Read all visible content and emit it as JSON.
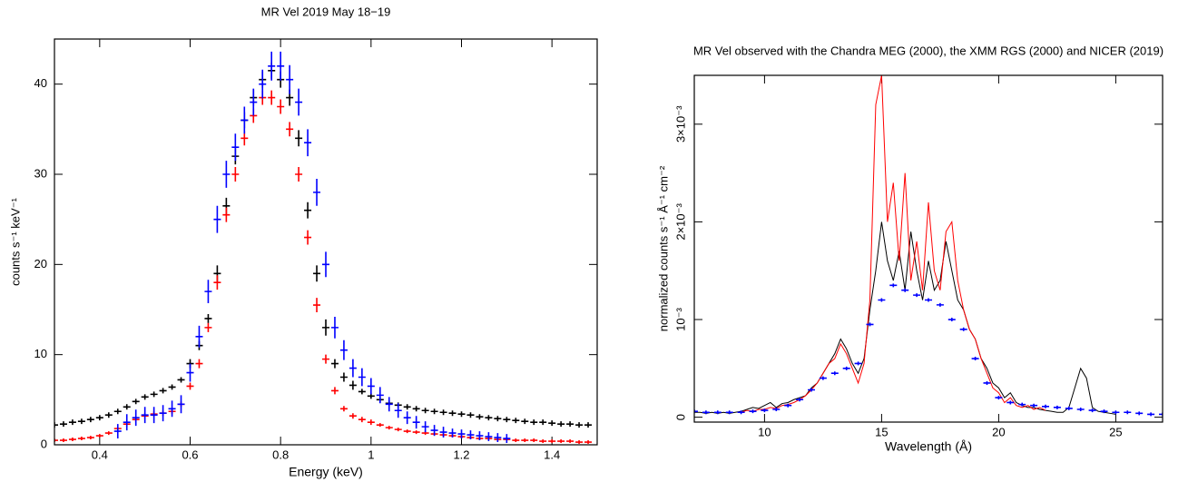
{
  "chart_data": [
    {
      "type": "scatter",
      "title": "MR Vel 2019 May 18−19",
      "x_label": "Energy (keV)",
      "y_label": "counts s⁻¹ keV⁻¹",
      "xlim": [
        0.3,
        1.5
      ],
      "ylim": [
        0,
        45
      ],
      "xticks": [
        0.4,
        0.6,
        0.8,
        1,
        1.2,
        1.4
      ],
      "yticks": [
        0,
        10,
        20,
        30,
        40
      ],
      "series": [
        {
          "color": "#000000",
          "x": [
            0.3,
            0.32,
            0.34,
            0.36,
            0.38,
            0.4,
            0.42,
            0.44,
            0.46,
            0.48,
            0.5,
            0.52,
            0.54,
            0.56,
            0.58,
            0.6,
            0.62,
            0.64,
            0.66,
            0.68,
            0.7,
            0.72,
            0.74,
            0.76,
            0.78,
            0.8,
            0.82,
            0.84,
            0.86,
            0.88,
            0.9,
            0.92,
            0.94,
            0.96,
            0.98,
            1.0,
            1.02,
            1.04,
            1.06,
            1.08,
            1.1,
            1.12,
            1.14,
            1.16,
            1.18,
            1.2,
            1.22,
            1.24,
            1.26,
            1.28,
            1.3,
            1.32,
            1.34,
            1.36,
            1.38,
            1.4,
            1.42,
            1.44,
            1.46,
            1.48
          ],
          "values": [
            2.2,
            2.3,
            2.5,
            2.6,
            2.8,
            3.0,
            3.3,
            3.7,
            4.2,
            4.8,
            5.3,
            5.6,
            6.0,
            6.4,
            7.2,
            9.0,
            11.0,
            14.0,
            19.0,
            26.5,
            32.0,
            36.0,
            38.5,
            40.5,
            41.5,
            40.5,
            38.5,
            34.0,
            26.0,
            19.0,
            13.0,
            9.0,
            7.5,
            6.6,
            5.9,
            5.4,
            5.0,
            4.6,
            4.4,
            4.2,
            4.0,
            3.8,
            3.7,
            3.6,
            3.5,
            3.4,
            3.3,
            3.1,
            3.0,
            2.9,
            2.8,
            2.7,
            2.6,
            2.5,
            2.5,
            2.4,
            2.3,
            2.3,
            2.2,
            2.2
          ],
          "errors": [
            0.3,
            0.3,
            0.3,
            0.3,
            0.3,
            0.3,
            0.3,
            0.3,
            0.3,
            0.3,
            0.3,
            0.3,
            0.3,
            0.3,
            0.3,
            0.5,
            0.5,
            0.5,
            0.9,
            0.9,
            0.9,
            0.9,
            0.9,
            0.9,
            0.9,
            0.9,
            0.9,
            0.9,
            0.9,
            0.9,
            0.9,
            0.5,
            0.5,
            0.5,
            0.3,
            0.3,
            0.3,
            0.3,
            0.3,
            0.3,
            0.3,
            0.3,
            0.3,
            0.3,
            0.3,
            0.3,
            0.3,
            0.3,
            0.3,
            0.3,
            0.3,
            0.3,
            0.3,
            0.3,
            0.3,
            0.3,
            0.3,
            0.3,
            0.3,
            0.3
          ]
        },
        {
          "color": "#ff0000",
          "x": [
            0.3,
            0.32,
            0.34,
            0.36,
            0.38,
            0.4,
            0.42,
            0.44,
            0.46,
            0.48,
            0.5,
            0.52,
            0.54,
            0.56,
            0.58,
            0.6,
            0.62,
            0.64,
            0.66,
            0.68,
            0.7,
            0.72,
            0.74,
            0.76,
            0.78,
            0.8,
            0.82,
            0.84,
            0.86,
            0.88,
            0.9,
            0.92,
            0.94,
            0.96,
            0.98,
            1.0,
            1.02,
            1.04,
            1.06,
            1.08,
            1.1,
            1.12,
            1.14,
            1.16,
            1.18,
            1.2,
            1.22,
            1.24,
            1.26,
            1.28,
            1.3,
            1.32,
            1.34,
            1.36,
            1.38,
            1.4,
            1.42,
            1.44,
            1.46,
            1.48
          ],
          "values": [
            0.5,
            0.5,
            0.6,
            0.7,
            0.8,
            1.0,
            1.3,
            1.8,
            2.3,
            2.8,
            3.2,
            3.4,
            3.5,
            3.7,
            4.5,
            6.5,
            9.0,
            13.0,
            18.0,
            25.5,
            30.0,
            34.0,
            36.5,
            38.5,
            38.5,
            37.5,
            35.0,
            30.0,
            23.0,
            15.5,
            9.5,
            6.0,
            4.0,
            3.2,
            2.8,
            2.5,
            2.2,
            1.9,
            1.7,
            1.5,
            1.4,
            1.3,
            1.2,
            1.1,
            1.0,
            0.9,
            0.8,
            0.7,
            0.7,
            0.6,
            0.6,
            0.5,
            0.5,
            0.5,
            0.4,
            0.4,
            0.4,
            0.4,
            0.3,
            0.3
          ],
          "errors": [
            0.2,
            0.2,
            0.2,
            0.2,
            0.2,
            0.2,
            0.2,
            0.2,
            0.3,
            0.3,
            0.3,
            0.3,
            0.3,
            0.3,
            0.3,
            0.4,
            0.5,
            0.5,
            0.8,
            0.8,
            0.8,
            0.8,
            0.8,
            0.8,
            0.8,
            0.8,
            0.8,
            0.8,
            0.8,
            0.8,
            0.5,
            0.4,
            0.3,
            0.3,
            0.3,
            0.3,
            0.2,
            0.2,
            0.2,
            0.2,
            0.2,
            0.2,
            0.2,
            0.2,
            0.2,
            0.2,
            0.2,
            0.2,
            0.2,
            0.2,
            0.2,
            0.2,
            0.2,
            0.2,
            0.2,
            0.2,
            0.2,
            0.2,
            0.2,
            0.2
          ]
        },
        {
          "color": "#0000ff",
          "x": [
            0.44,
            0.46,
            0.48,
            0.5,
            0.52,
            0.54,
            0.56,
            0.58,
            0.6,
            0.62,
            0.64,
            0.66,
            0.68,
            0.7,
            0.72,
            0.74,
            0.76,
            0.78,
            0.8,
            0.82,
            0.84,
            0.86,
            0.88,
            0.9,
            0.92,
            0.94,
            0.96,
            0.98,
            1.0,
            1.02,
            1.04,
            1.06,
            1.08,
            1.1,
            1.12,
            1.14,
            1.16,
            1.18,
            1.2,
            1.22,
            1.24,
            1.26,
            1.28,
            1.3
          ],
          "values": [
            1.5,
            2.5,
            3.0,
            3.3,
            3.3,
            3.5,
            4.0,
            4.5,
            8.0,
            12.0,
            17.0,
            25.0,
            30.0,
            33.0,
            36.0,
            38.0,
            40.0,
            42.0,
            42.0,
            40.5,
            38.0,
            33.5,
            28.0,
            20.0,
            13.0,
            10.5,
            8.5,
            7.5,
            6.5,
            5.5,
            4.5,
            3.8,
            3.0,
            2.5,
            2.0,
            1.6,
            1.4,
            1.3,
            1.2,
            1.1,
            1.0,
            0.9,
            0.8,
            0.7
          ],
          "errors": [
            0.8,
            0.9,
            0.9,
            0.9,
            0.9,
            0.9,
            0.9,
            1.0,
            1.0,
            1.2,
            1.3,
            1.5,
            1.5,
            1.5,
            1.5,
            1.5,
            1.6,
            1.6,
            1.6,
            1.6,
            1.5,
            1.5,
            1.5,
            1.4,
            1.2,
            1.1,
            1.0,
            1.0,
            0.9,
            0.9,
            0.8,
            0.8,
            0.7,
            0.7,
            0.6,
            0.6,
            0.6,
            0.5,
            0.5,
            0.5,
            0.5,
            0.5,
            0.5,
            0.5
          ]
        }
      ]
    },
    {
      "type": "line",
      "title": "MR Vel observed with the Chandra MEG (2000), the XMM RGS (2000) and NICER (2019)",
      "x_label": "Wavelength (Å)",
      "y_label": "normalized counts s⁻¹ Å⁻¹ cm⁻²",
      "xlim": [
        7,
        27
      ],
      "ylim": [
        -5e-05,
        0.0035
      ],
      "xticks": [
        10,
        15,
        20,
        25
      ],
      "yticks": [
        0,
        {
          "value": 0.001,
          "label": "10⁻³"
        },
        {
          "value": 0.002,
          "label": "2×10⁻³"
        },
        {
          "value": 0.003,
          "label": "3×10⁻³"
        }
      ],
      "series": [
        {
          "color": "#000000",
          "style": "line",
          "x": [
            7,
            7.25,
            7.5,
            7.75,
            8,
            8.25,
            8.5,
            8.75,
            9,
            9.25,
            9.5,
            9.75,
            10,
            10.25,
            10.5,
            10.75,
            11,
            11.25,
            11.5,
            11.75,
            12,
            12.25,
            12.5,
            12.75,
            13,
            13.25,
            13.5,
            13.75,
            14,
            14.25,
            14.5,
            14.75,
            15,
            15.25,
            15.5,
            15.75,
            16,
            16.25,
            16.5,
            16.75,
            17,
            17.25,
            17.5,
            17.75,
            18,
            18.25,
            18.5,
            18.75,
            19,
            19.25,
            19.5,
            19.75,
            20,
            20.25,
            20.5,
            20.75,
            21,
            21.25,
            21.5,
            21.75,
            22,
            22.25,
            22.5,
            22.75,
            23,
            23.25,
            23.5,
            23.75,
            24,
            24.25,
            24.5,
            24.75,
            25
          ],
          "values": [
            5e-05,
            5e-05,
            4e-05,
            5e-05,
            4e-05,
            5e-05,
            4e-05,
            5e-05,
            6e-05,
            8e-05,
            0.0001,
            9e-05,
            0.00012,
            0.00015,
            0.0001,
            0.00014,
            0.00015,
            0.00018,
            0.0002,
            0.00022,
            0.0003,
            0.00035,
            0.00045,
            0.00055,
            0.00065,
            0.0008,
            0.0007,
            0.00055,
            0.00045,
            0.0006,
            0.0011,
            0.0015,
            0.002,
            0.0016,
            0.0014,
            0.0017,
            0.0013,
            0.0019,
            0.0015,
            0.0012,
            0.0016,
            0.0013,
            0.0014,
            0.0018,
            0.0015,
            0.0012,
            0.0011,
            0.0009,
            0.0008,
            0.0006,
            0.0005,
            0.00035,
            0.0003,
            0.0002,
            0.00025,
            0.00015,
            0.00012,
            0.0001,
            0.0001,
            8e-05,
            7e-05,
            6e-05,
            5e-05,
            5e-05,
            0.0001,
            0.0003,
            0.0005,
            0.0004,
            0.0001,
            6e-05,
            5e-05,
            4e-05,
            3e-05
          ]
        },
        {
          "color": "#ff0000",
          "style": "line",
          "x": [
            9,
            9.25,
            9.5,
            9.75,
            10,
            10.25,
            10.5,
            10.75,
            11,
            11.25,
            11.5,
            11.75,
            12,
            12.25,
            12.5,
            12.75,
            13,
            13.25,
            13.5,
            13.75,
            14,
            14.25,
            14.5,
            14.75,
            15,
            15.25,
            15.5,
            15.75,
            16,
            16.25,
            16.5,
            16.75,
            17,
            17.25,
            17.5,
            17.75,
            18,
            18.25,
            18.5,
            18.75,
            19,
            19.25,
            19.5,
            19.75,
            20,
            20.25,
            20.5,
            20.75,
            21,
            21.25,
            21.5,
            21.75,
            22
          ],
          "values": [
            5e-05,
            7e-05,
            6e-05,
            8e-05,
            8e-05,
            0.0001,
            9e-05,
            0.00012,
            0.00013,
            0.00015,
            0.00018,
            0.00022,
            0.00028,
            0.00035,
            0.00045,
            0.00055,
            0.0006,
            0.00075,
            0.00065,
            0.0005,
            0.00035,
            0.00055,
            0.0012,
            0.0032,
            0.0035,
            0.002,
            0.0024,
            0.0016,
            0.0025,
            0.0014,
            0.0018,
            0.0013,
            0.0022,
            0.0015,
            0.0013,
            0.0019,
            0.002,
            0.0014,
            0.0011,
            0.0009,
            0.0008,
            0.0006,
            0.00045,
            0.0003,
            0.00025,
            0.00015,
            0.0002,
            0.00012,
            0.0001,
            0.00012,
            8e-05,
            0.0001,
            7e-05
          ]
        },
        {
          "color": "#0000ff",
          "style": "cross",
          "x": [
            7,
            7.5,
            8,
            8.5,
            9,
            9.5,
            10,
            10.5,
            11,
            11.5,
            12,
            12.5,
            13,
            13.5,
            14,
            14.5,
            15,
            15.5,
            16,
            16.5,
            17,
            17.5,
            18,
            18.5,
            19,
            19.5,
            20,
            20.5,
            21,
            21.5,
            22,
            22.5,
            23,
            23.5,
            24,
            24.5,
            25,
            25.5,
            26,
            26.5,
            27
          ],
          "values": [
            6e-05,
            5e-05,
            5e-05,
            5e-05,
            5e-05,
            6e-05,
            7e-05,
            8e-05,
            0.00012,
            0.00018,
            0.00028,
            0.0004,
            0.00045,
            0.0005,
            0.00055,
            0.00095,
            0.0012,
            0.00135,
            0.0013,
            0.00125,
            0.0012,
            0.00115,
            0.001,
            0.0009,
            0.0006,
            0.00035,
            0.0002,
            0.00015,
            0.00013,
            0.00012,
            0.00011,
            0.0001,
            9e-05,
            8e-05,
            7e-05,
            6e-05,
            5e-05,
            5e-05,
            4e-05,
            3e-05,
            3e-05
          ]
        }
      ]
    }
  ]
}
